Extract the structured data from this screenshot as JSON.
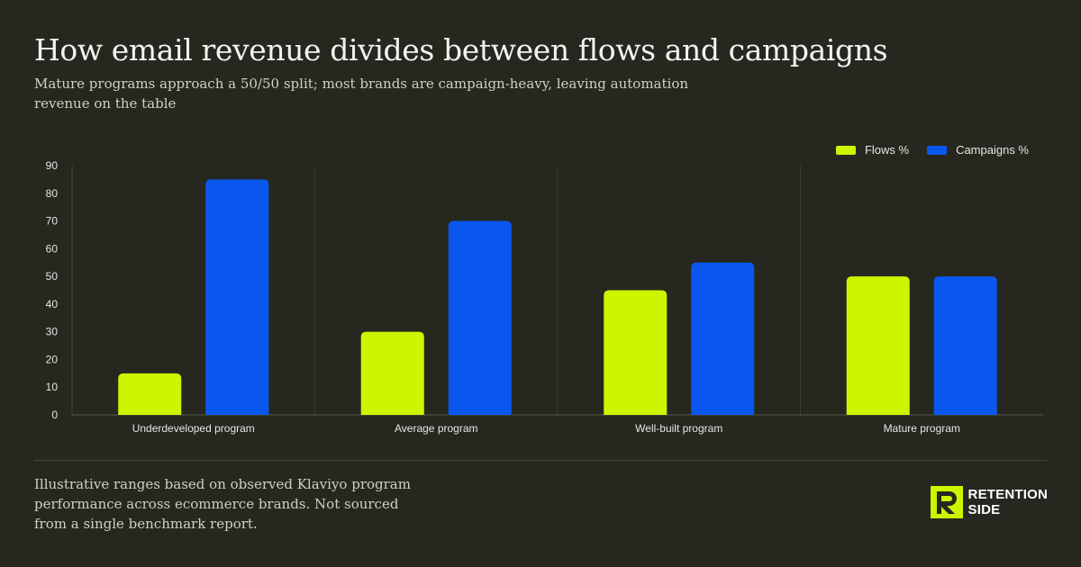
{
  "title": "How email revenue divides between flows and campaigns",
  "subtitle": "Mature programs approach a 50/50 split; most brands are campaign-heavy, leaving automation revenue on the table",
  "colors": {
    "flows": "#ccf500",
    "campaigns": "#0a57f0",
    "background": "#262820"
  },
  "chart_data": {
    "type": "bar",
    "categories": [
      "Underdeveloped program",
      "Average program",
      "Well-built program",
      "Mature program"
    ],
    "series": [
      {
        "name": "Flows %",
        "values": [
          15,
          30,
          45,
          50
        ]
      },
      {
        "name": "Campaigns %",
        "values": [
          85,
          70,
          55,
          50
        ]
      }
    ],
    "ylim": [
      0,
      90
    ],
    "yticks": [
      0,
      10,
      20,
      30,
      40,
      50,
      60,
      70,
      80,
      90
    ],
    "grid": "vertical-separators",
    "legend": "top-right"
  },
  "footnote": "Illustrative ranges based on observed Klaviyo program performance across ecommerce brands. Not sourced from a single benchmark report.",
  "brand": {
    "line1": "RETENTION",
    "line2": "SIDE",
    "icon": "retention-side-logo-icon"
  }
}
